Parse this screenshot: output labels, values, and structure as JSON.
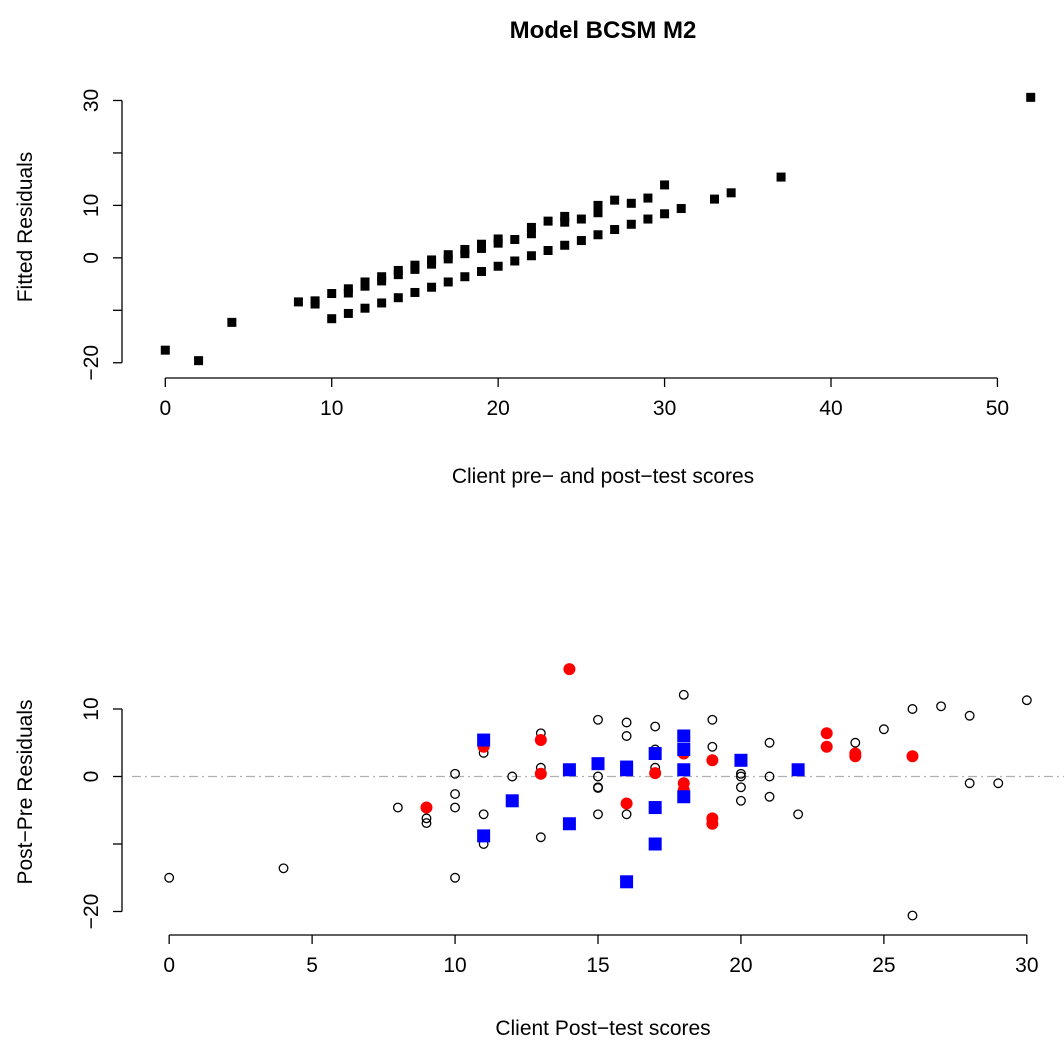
{
  "title": "Model BCSM M2",
  "chart_data": [
    {
      "type": "scatter",
      "xlabel": "Client pre− and post−test scores",
      "ylabel": "Fitted Residuals",
      "xlim": [
        -2,
        54
      ],
      "ylim": [
        -21,
        32
      ],
      "xticks": [
        0,
        10,
        20,
        30,
        40,
        50
      ],
      "yticks": [
        -20,
        -10,
        0,
        10,
        20,
        30
      ],
      "ytick_labels": [
        "−20",
        "",
        "0",
        "10",
        "",
        "30"
      ],
      "marker": "filled-square",
      "series": [
        {
          "color": "#000000",
          "points": [
            [
              0,
              -17.6
            ],
            [
              2,
              -19.6
            ],
            [
              4,
              -12.3
            ],
            [
              8,
              -8.4
            ],
            [
              9,
              -8.2
            ],
            [
              9,
              -8.8
            ],
            [
              10,
              -6.8
            ],
            [
              10,
              -11.6
            ],
            [
              11,
              -5.9
            ],
            [
              11,
              -6.7
            ],
            [
              11,
              -10.6
            ],
            [
              12,
              -4.6
            ],
            [
              12,
              -5.4
            ],
            [
              12,
              -9.6
            ],
            [
              13,
              -3.6
            ],
            [
              13,
              -4.4
            ],
            [
              13,
              -8.6
            ],
            [
              14,
              -2.4
            ],
            [
              14,
              -3.2
            ],
            [
              14,
              -7.6
            ],
            [
              15,
              -1.4
            ],
            [
              15,
              -2.2
            ],
            [
              15,
              -6.6
            ],
            [
              16,
              -0.4
            ],
            [
              16,
              -1.2
            ],
            [
              16,
              -5.6
            ],
            [
              17,
              0.6
            ],
            [
              17,
              -0.2
            ],
            [
              17,
              -4.6
            ],
            [
              18,
              1.6
            ],
            [
              18,
              0.8
            ],
            [
              18,
              -3.6
            ],
            [
              19,
              2.6
            ],
            [
              19,
              1.8
            ],
            [
              19,
              -2.6
            ],
            [
              20,
              3.6
            ],
            [
              20,
              2.8
            ],
            [
              20,
              -1.6
            ],
            [
              21,
              3.5
            ],
            [
              21,
              -0.6
            ],
            [
              22,
              5.8
            ],
            [
              22,
              4.6
            ],
            [
              22,
              0.4
            ],
            [
              23,
              7.0
            ],
            [
              23,
              1.4
            ],
            [
              24,
              7.9
            ],
            [
              24,
              6.8
            ],
            [
              24,
              2.4
            ],
            [
              25,
              7.4
            ],
            [
              25,
              3.3
            ],
            [
              26,
              10.0
            ],
            [
              26,
              8.6
            ],
            [
              26,
              4.4
            ],
            [
              27,
              11.0
            ],
            [
              27,
              5.4
            ],
            [
              28,
              10.4
            ],
            [
              28,
              6.4
            ],
            [
              29,
              11.4
            ],
            [
              29,
              7.4
            ],
            [
              30,
              13.9
            ],
            [
              30,
              8.4
            ],
            [
              31,
              9.4
            ],
            [
              33,
              11.2
            ],
            [
              34,
              12.4
            ],
            [
              37,
              15.4
            ],
            [
              52,
              30.6
            ]
          ]
        }
      ]
    },
    {
      "type": "scatter",
      "xlabel": "Client Post−test scores",
      "ylabel": "Post−Pre Residuals",
      "xlim": [
        -1.3,
        31.3
      ],
      "ylim": [
        -22,
        18
      ],
      "xticks": [
        0,
        5,
        10,
        15,
        20,
        25,
        30
      ],
      "yticks": [
        -20,
        -10,
        0,
        10
      ],
      "ytick_labels": [
        "−20",
        "",
        "0",
        "10"
      ],
      "reference_line": {
        "y": 0,
        "style": "dash-dot",
        "color": "#b0b0b0"
      },
      "series": [
        {
          "marker": "open-circle",
          "color": "#000000",
          "points": [
            [
              0,
              -15
            ],
            [
              4,
              -13.6
            ],
            [
              8,
              -4.6
            ],
            [
              9,
              -6.2
            ],
            [
              9,
              -6.9
            ],
            [
              10,
              0.4
            ],
            [
              10,
              -2.6
            ],
            [
              10,
              -4.6
            ],
            [
              10,
              -15
            ],
            [
              11,
              3.5
            ],
            [
              11,
              -5.6
            ],
            [
              11,
              -10
            ],
            [
              12,
              0
            ],
            [
              13,
              6.4
            ],
            [
              13,
              1.3
            ],
            [
              13,
              -9
            ],
            [
              15,
              8.4
            ],
            [
              15,
              0
            ],
            [
              15,
              -1.6
            ],
            [
              15,
              -1.7
            ],
            [
              15,
              -5.6
            ],
            [
              16,
              8.0
            ],
            [
              16,
              6.0
            ],
            [
              16,
              -5.6
            ],
            [
              17,
              7.4
            ],
            [
              17,
              4.0
            ],
            [
              17,
              1.3
            ],
            [
              18,
              12.1
            ],
            [
              19,
              8.4
            ],
            [
              19,
              4.4
            ],
            [
              20,
              0.4
            ],
            [
              20,
              0
            ],
            [
              20,
              -1.6
            ],
            [
              20,
              -3.6
            ],
            [
              21,
              5.0
            ],
            [
              21,
              0
            ],
            [
              21,
              -3.0
            ],
            [
              22,
              -5.6
            ],
            [
              24,
              5.0
            ],
            [
              25,
              7.0
            ],
            [
              26,
              10.0
            ],
            [
              26,
              -20.6
            ],
            [
              27,
              10.4
            ],
            [
              28,
              9.0
            ],
            [
              28,
              -1.0
            ],
            [
              29,
              -1.0
            ],
            [
              30,
              11.3
            ]
          ]
        },
        {
          "marker": "filled-circle",
          "color": "#ff0000",
          "points": [
            [
              9,
              -4.6
            ],
            [
              11,
              4.4
            ],
            [
              13,
              5.4
            ],
            [
              13,
              0.4
            ],
            [
              14,
              15.9
            ],
            [
              16,
              -4.0
            ],
            [
              17,
              0.5
            ],
            [
              18,
              3.4
            ],
            [
              18,
              -1.0
            ],
            [
              18,
              -2.0
            ],
            [
              19,
              2.4
            ],
            [
              19,
              -6.2
            ],
            [
              19,
              -7.0
            ],
            [
              23,
              6.4
            ],
            [
              23,
              4.4
            ],
            [
              24,
              3.4
            ],
            [
              24,
              3.0
            ],
            [
              26,
              3.0
            ]
          ]
        },
        {
          "marker": "filled-square",
          "color": "#0000ff",
          "points": [
            [
              11,
              5.4
            ],
            [
              11,
              -8.8
            ],
            [
              12,
              -3.6
            ],
            [
              14,
              1.0
            ],
            [
              14,
              -7.0
            ],
            [
              15,
              1.9
            ],
            [
              16,
              1.4
            ],
            [
              16,
              1.0
            ],
            [
              16,
              -15.6
            ],
            [
              17,
              3.4
            ],
            [
              17,
              -4.6
            ],
            [
              17,
              -10
            ],
            [
              18,
              6.0
            ],
            [
              18,
              4.0
            ],
            [
              18,
              1.0
            ],
            [
              18,
              -3.0
            ],
            [
              20,
              2.4
            ],
            [
              22,
              1.0
            ]
          ]
        }
      ]
    }
  ]
}
